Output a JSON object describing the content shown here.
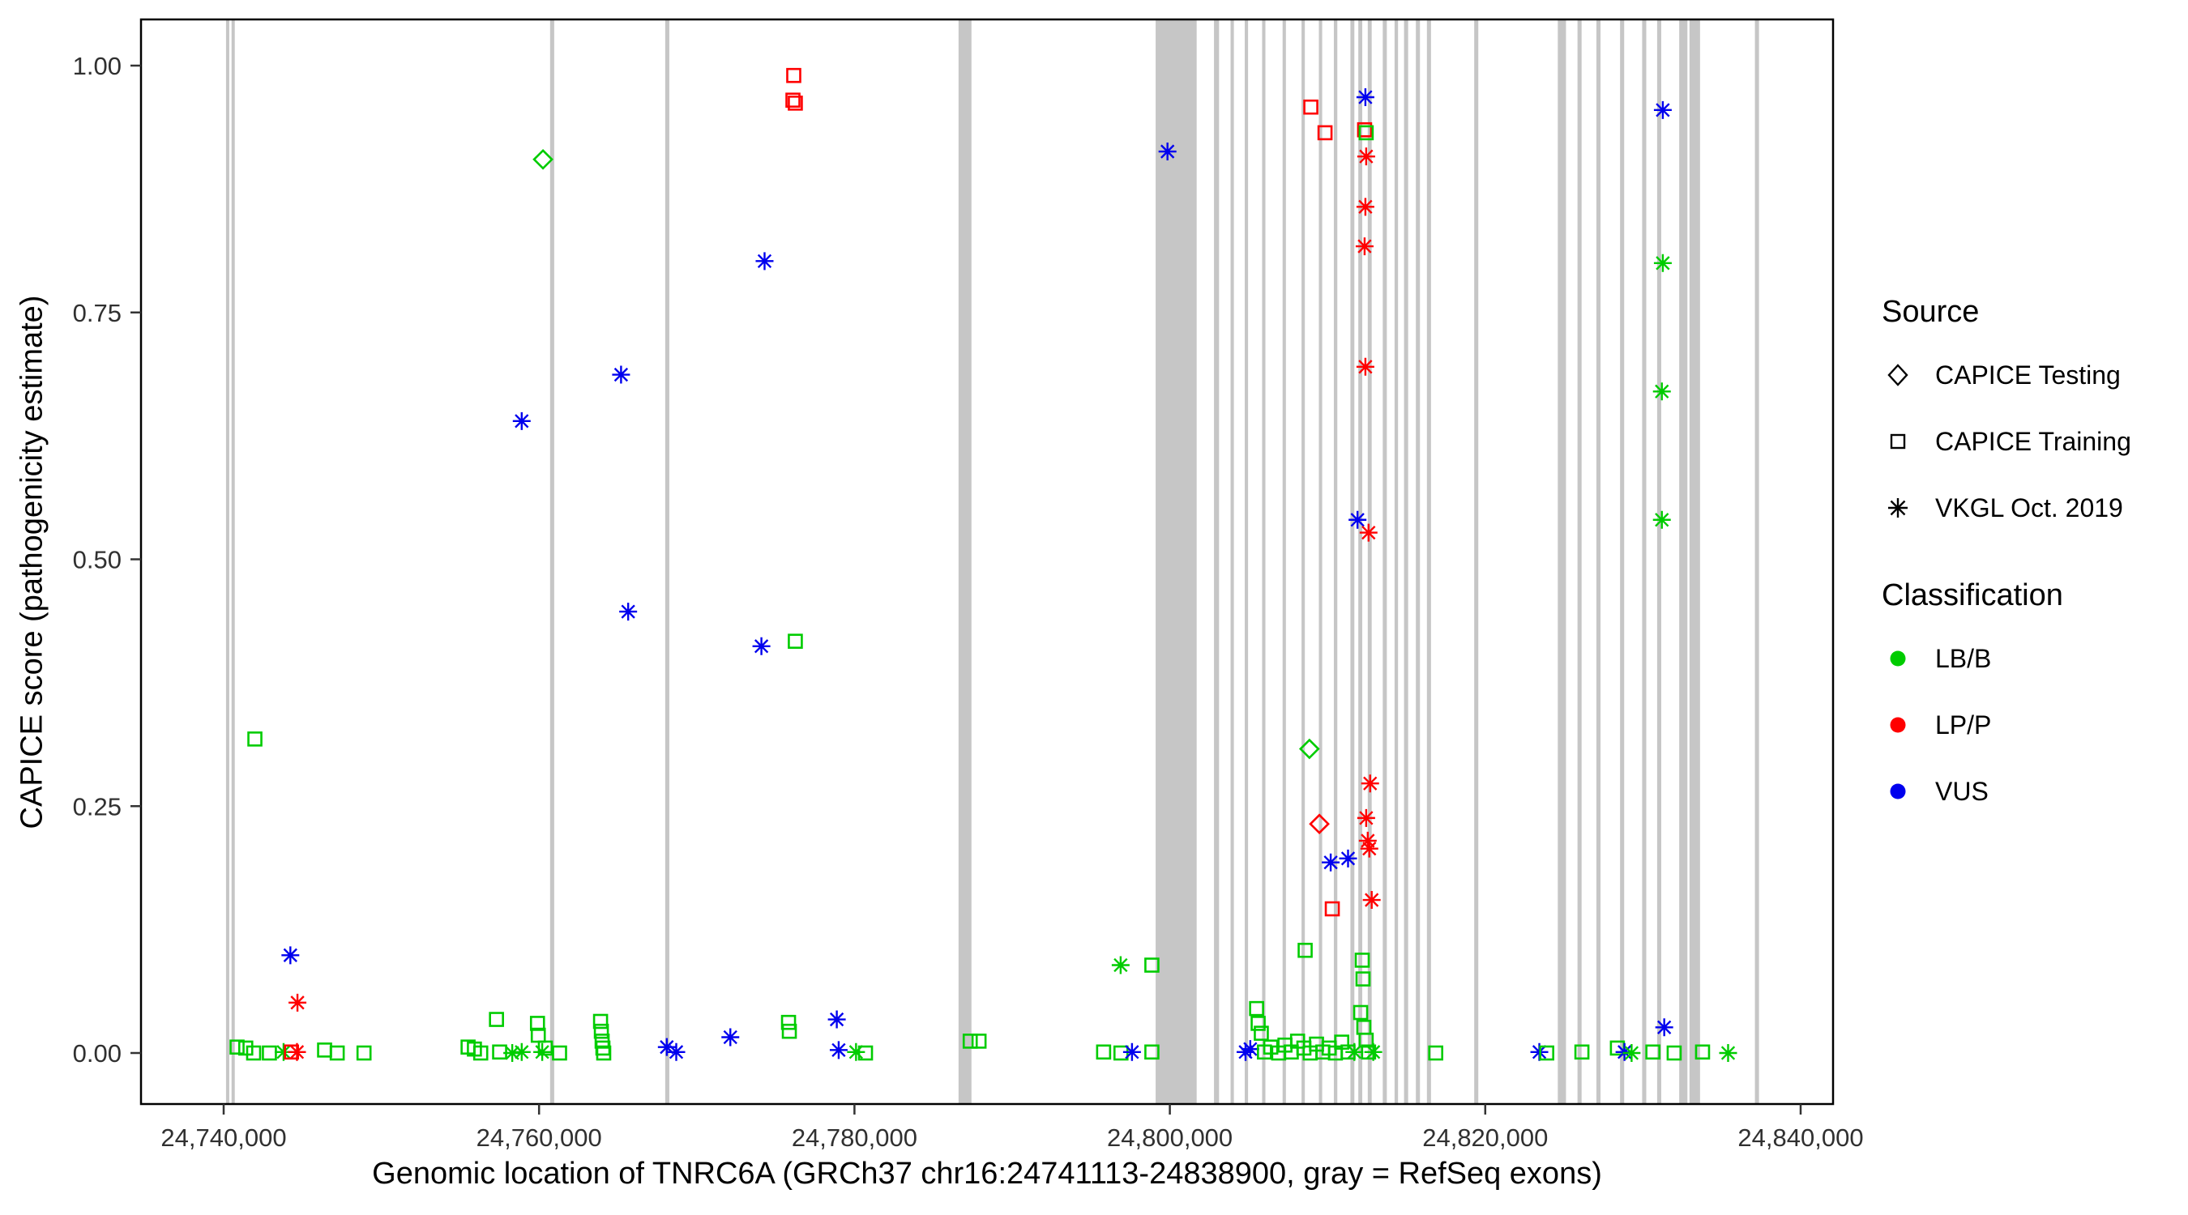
{
  "chart_data": {
    "type": "scatter",
    "title": "",
    "xlabel": "Genomic location of TNRC6A (GRCh37 chr16:24741113-24838900, gray = RefSeq exons)",
    "ylabel": "CAPICE score (pathogenicity estimate)",
    "xlim": [
      24734750,
      24842050
    ],
    "ylim": [
      -0.05,
      1.05
    ],
    "grid": false,
    "legend_position": "right",
    "x_ticks": {
      "values": [
        24740000,
        24760000,
        24780000,
        24800000,
        24820000,
        24840000
      ],
      "labels": [
        "24,740,000",
        "24,760,000",
        "24,780,000",
        "24,800,000",
        "24,820,000",
        "24,840,000"
      ]
    },
    "y_ticks": {
      "values": [
        0.0,
        0.25,
        0.5,
        0.75,
        1.0
      ],
      "labels": [
        "0.00",
        "0.25",
        "0.50",
        "0.75",
        "1.00"
      ]
    },
    "exon_band_color": "#c6c6c6",
    "classification_colors": {
      "LB/B": "#00cc00",
      "LP/P": "#ff0000",
      "VUS": "#0000ee"
    },
    "shape_codes": {
      "d": "CAPICE Testing",
      "s": "CAPICE Training",
      "a": "VKGL Oct. 2019"
    },
    "color_codes": {
      "g": "LB/B",
      "r": "LP/P",
      "b": "VUS"
    },
    "legend": {
      "source_title": "Source",
      "source_items": [
        {
          "label": "CAPICE Testing",
          "shape": "d"
        },
        {
          "label": "CAPICE Training",
          "shape": "s"
        },
        {
          "label": "VKGL Oct. 2019",
          "shape": "a"
        }
      ],
      "classification_title": "Classification",
      "classification_items": [
        {
          "label": "LB/B",
          "color": "#00cc00"
        },
        {
          "label": "LP/P",
          "color": "#ff0000"
        },
        {
          "label": "VUS",
          "color": "#0000ee"
        }
      ]
    },
    "exons": [
      [
        24740150,
        24740280
      ],
      [
        24740500,
        24740680
      ],
      [
        24760700,
        24760960
      ],
      [
        24768000,
        24768260
      ],
      [
        24786600,
        24787420
      ],
      [
        24799100,
        24801700
      ],
      [
        24802800,
        24803120
      ],
      [
        24803850,
        24804060
      ],
      [
        24804750,
        24804960
      ],
      [
        24805850,
        24806060
      ],
      [
        24807150,
        24807360
      ],
      [
        24808350,
        24808560
      ],
      [
        24809450,
        24809660
      ],
      [
        24810400,
        24810620
      ],
      [
        24811450,
        24811700
      ],
      [
        24811950,
        24812200
      ],
      [
        24812550,
        24812800
      ],
      [
        24813500,
        24813760
      ],
      [
        24814250,
        24814470
      ],
      [
        24814850,
        24815110
      ],
      [
        24815600,
        24815860
      ],
      [
        24816300,
        24816560
      ],
      [
        24819300,
        24819560
      ],
      [
        24824600,
        24825120
      ],
      [
        24825850,
        24826110
      ],
      [
        24827050,
        24827310
      ],
      [
        24828550,
        24828810
      ],
      [
        24829950,
        24830210
      ],
      [
        24830900,
        24831160
      ],
      [
        24832300,
        24832820
      ],
      [
        24832950,
        24833620
      ],
      [
        24837100,
        24837360
      ]
    ],
    "points": [
      [
        24776150,
        0.99,
        "s",
        "r"
      ],
      [
        24776100,
        0.965,
        "s",
        "r"
      ],
      [
        24776250,
        0.962,
        "s",
        "r"
      ],
      [
        24760250,
        0.905,
        "d",
        "g"
      ],
      [
        24774300,
        0.802,
        "a",
        "b"
      ],
      [
        24765200,
        0.687,
        "a",
        "b"
      ],
      [
        24758900,
        0.64,
        "a",
        "b"
      ],
      [
        24765650,
        0.447,
        "a",
        "b"
      ],
      [
        24774100,
        0.412,
        "a",
        "b"
      ],
      [
        24776250,
        0.417,
        "s",
        "g"
      ],
      [
        24741980,
        0.318,
        "s",
        "g"
      ],
      [
        24744230,
        0.099,
        "a",
        "b"
      ],
      [
        24744680,
        0.051,
        "a",
        "r"
      ],
      [
        24799850,
        0.913,
        "a",
        "b"
      ],
      [
        24808940,
        0.958,
        "s",
        "r"
      ],
      [
        24809840,
        0.932,
        "s",
        "r"
      ],
      [
        24812400,
        0.968,
        "a",
        "b"
      ],
      [
        24812350,
        0.935,
        "s",
        "r"
      ],
      [
        24812450,
        0.932,
        "s",
        "g"
      ],
      [
        24812450,
        0.908,
        "a",
        "r"
      ],
      [
        24812400,
        0.857,
        "a",
        "r"
      ],
      [
        24812350,
        0.817,
        "a",
        "r"
      ],
      [
        24812400,
        0.695,
        "a",
        "r"
      ],
      [
        24811900,
        0.54,
        "a",
        "b"
      ],
      [
        24812600,
        0.527,
        "a",
        "r"
      ],
      [
        24808850,
        0.308,
        "d",
        "g"
      ],
      [
        24812700,
        0.273,
        "a",
        "r"
      ],
      [
        24809480,
        0.232,
        "d",
        "r"
      ],
      [
        24812450,
        0.238,
        "a",
        "r"
      ],
      [
        24812550,
        0.215,
        "a",
        "r"
      ],
      [
        24812650,
        0.207,
        "a",
        "r"
      ],
      [
        24810200,
        0.193,
        "a",
        "b"
      ],
      [
        24811300,
        0.197,
        "a",
        "b"
      ],
      [
        24812800,
        0.155,
        "a",
        "r"
      ],
      [
        24810300,
        0.146,
        "s",
        "r"
      ],
      [
        24808580,
        0.104,
        "s",
        "g"
      ],
      [
        24812200,
        0.094,
        "s",
        "g"
      ],
      [
        24812250,
        0.075,
        "s",
        "g"
      ],
      [
        24796880,
        0.089,
        "a",
        "g"
      ],
      [
        24798860,
        0.089,
        "s",
        "g"
      ],
      [
        24831260,
        0.955,
        "a",
        "b"
      ],
      [
        24831260,
        0.8,
        "a",
        "g"
      ],
      [
        24831200,
        0.67,
        "a",
        "g"
      ],
      [
        24831200,
        0.54,
        "a",
        "g"
      ],
      [
        24831350,
        0.026,
        "a",
        "b"
      ],
      [
        24740850,
        0.006,
        "s",
        "g"
      ],
      [
        24741400,
        0.005,
        "s",
        "g"
      ],
      [
        24741900,
        0.0,
        "s",
        "g"
      ],
      [
        24742900,
        0.0,
        "s",
        "g"
      ],
      [
        24743800,
        0.001,
        "a",
        "g"
      ],
      [
        24744300,
        0.001,
        "s",
        "r"
      ],
      [
        24744650,
        0.001,
        "a",
        "r"
      ],
      [
        24746400,
        0.003,
        "s",
        "g"
      ],
      [
        24747200,
        0.0,
        "s",
        "g"
      ],
      [
        24748900,
        0.0,
        "s",
        "g"
      ],
      [
        24755500,
        0.006,
        "s",
        "g"
      ],
      [
        24755900,
        0.004,
        "s",
        "g"
      ],
      [
        24756300,
        0.0,
        "s",
        "g"
      ],
      [
        24757300,
        0.034,
        "s",
        "g"
      ],
      [
        24757500,
        0.001,
        "s",
        "g"
      ],
      [
        24758300,
        0.0,
        "a",
        "g"
      ],
      [
        24758900,
        0.001,
        "a",
        "g"
      ],
      [
        24759900,
        0.03,
        "s",
        "g"
      ],
      [
        24759950,
        0.018,
        "s",
        "g"
      ],
      [
        24760200,
        0.001,
        "a",
        "g"
      ],
      [
        24760400,
        0.005,
        "s",
        "g"
      ],
      [
        24761300,
        0.0,
        "s",
        "g"
      ],
      [
        24763900,
        0.032,
        "s",
        "g"
      ],
      [
        24763950,
        0.022,
        "s",
        "g"
      ],
      [
        24764000,
        0.012,
        "s",
        "g"
      ],
      [
        24764050,
        0.005,
        "s",
        "g"
      ],
      [
        24764100,
        0.0,
        "s",
        "g"
      ],
      [
        24768100,
        0.006,
        "a",
        "b"
      ],
      [
        24768700,
        0.001,
        "a",
        "b"
      ],
      [
        24772130,
        0.016,
        "a",
        "b"
      ],
      [
        24775820,
        0.031,
        "s",
        "g"
      ],
      [
        24775870,
        0.022,
        "s",
        "g"
      ],
      [
        24778880,
        0.034,
        "a",
        "b"
      ],
      [
        24779000,
        0.003,
        "a",
        "b"
      ],
      [
        24780100,
        0.001,
        "a",
        "g"
      ],
      [
        24780700,
        0.0,
        "s",
        "g"
      ],
      [
        24787340,
        0.012,
        "s",
        "g"
      ],
      [
        24787900,
        0.012,
        "s",
        "g"
      ],
      [
        24795800,
        0.001,
        "s",
        "g"
      ],
      [
        24796900,
        0.0,
        "s",
        "g"
      ],
      [
        24797600,
        0.001,
        "a",
        "b"
      ],
      [
        24798860,
        0.001,
        "s",
        "g"
      ],
      [
        24804800,
        0.001,
        "a",
        "b"
      ],
      [
        24805100,
        0.004,
        "a",
        "b"
      ],
      [
        24805500,
        0.045,
        "s",
        "g"
      ],
      [
        24805600,
        0.03,
        "s",
        "g"
      ],
      [
        24805800,
        0.02,
        "s",
        "g"
      ],
      [
        24806000,
        0.001,
        "s",
        "g"
      ],
      [
        24806400,
        0.006,
        "s",
        "g"
      ],
      [
        24806900,
        0.0,
        "s",
        "g"
      ],
      [
        24807300,
        0.008,
        "s",
        "g"
      ],
      [
        24807700,
        0.001,
        "s",
        "g"
      ],
      [
        24808100,
        0.012,
        "s",
        "g"
      ],
      [
        24808500,
        0.005,
        "s",
        "g"
      ],
      [
        24808900,
        0.0,
        "s",
        "g"
      ],
      [
        24809300,
        0.009,
        "s",
        "g"
      ],
      [
        24809700,
        0.001,
        "s",
        "g"
      ],
      [
        24810100,
        0.005,
        "s",
        "g"
      ],
      [
        24810500,
        0.0,
        "s",
        "g"
      ],
      [
        24810900,
        0.011,
        "s",
        "g"
      ],
      [
        24811300,
        0.001,
        "s",
        "g"
      ],
      [
        24811700,
        0.001,
        "a",
        "g"
      ],
      [
        24812100,
        0.041,
        "s",
        "g"
      ],
      [
        24812300,
        0.026,
        "s",
        "g"
      ],
      [
        24812450,
        0.013,
        "s",
        "g"
      ],
      [
        24812600,
        0.001,
        "s",
        "g"
      ],
      [
        24812900,
        0.001,
        "a",
        "g"
      ],
      [
        24816860,
        0.0,
        "s",
        "g"
      ],
      [
        24823430,
        0.001,
        "a",
        "b"
      ],
      [
        24823900,
        0.0,
        "s",
        "g"
      ],
      [
        24826130,
        0.001,
        "s",
        "g"
      ],
      [
        24828380,
        0.005,
        "s",
        "g"
      ],
      [
        24828830,
        0.001,
        "a",
        "b"
      ],
      [
        24829280,
        0.0,
        "a",
        "g"
      ],
      [
        24830630,
        0.001,
        "s",
        "g"
      ],
      [
        24831980,
        0.0,
        "s",
        "g"
      ],
      [
        24833780,
        0.001,
        "s",
        "g"
      ],
      [
        24835400,
        0.0,
        "a",
        "g"
      ]
    ]
  }
}
